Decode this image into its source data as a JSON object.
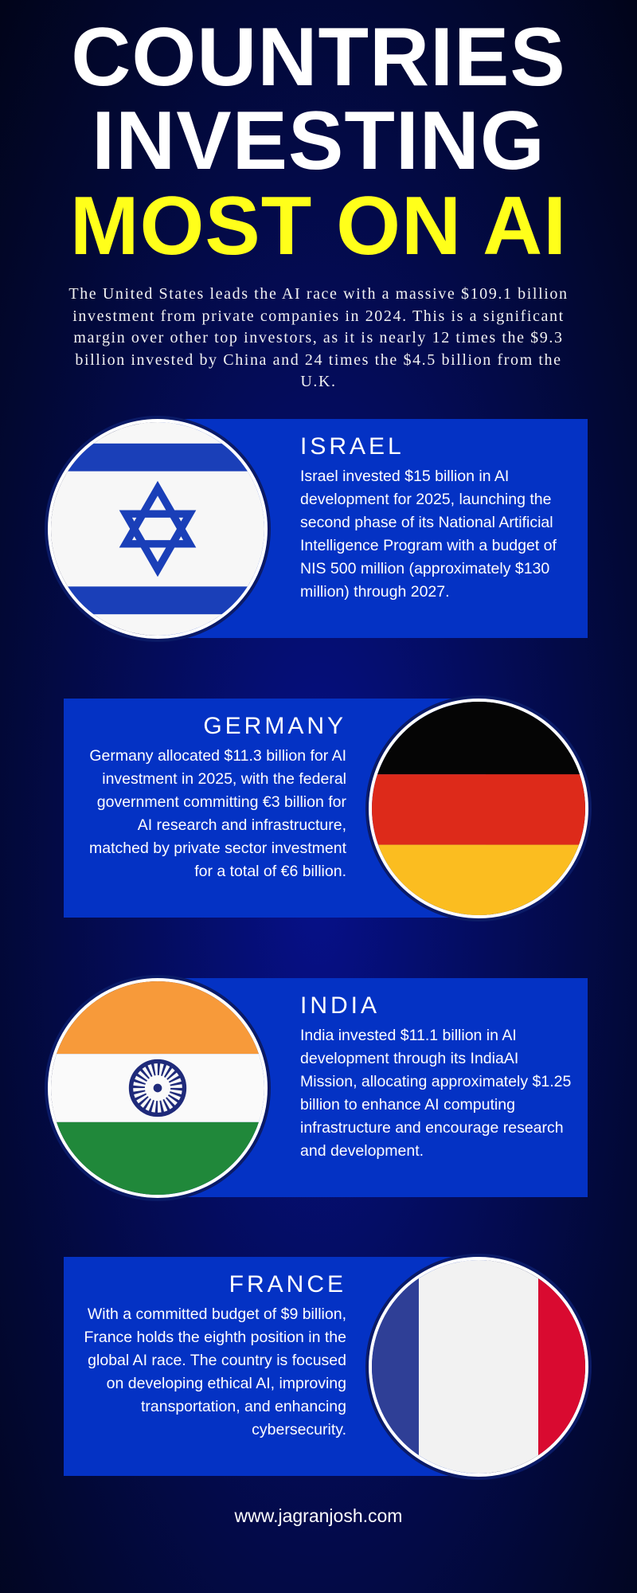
{
  "header": {
    "line1": "COUNTRIES",
    "line2": "INVESTING",
    "line3": "MOST ON AI",
    "accent_color": "#ffff1a"
  },
  "intro": "The United States leads the AI race with a massive $109.1 billion investment from private companies in 2024. This is a significant margin over other top investors, as it is nearly 12 times the $9.3 billion invested by China and 24 times the $4.5 billion from the U.K.",
  "countries": [
    {
      "name": "ISRAEL",
      "text": "Israel invested $15 billion in AI development for 2025, launching the second phase of its National Artificial Intelligence Program with a budget of NIS 500 million (approximately $130 million) through 2027.",
      "flag": "israel-flag"
    },
    {
      "name": "GERMANY",
      "text": "Germany allocated $11.3 billion for AI investment in 2025, with the federal government committing €3 billion for AI research and infrastructure, matched by private sector investment for a total of €6 billion.",
      "flag": "germany-flag"
    },
    {
      "name": "INDIA",
      "text": "India invested $11.1 billion in AI development through its IndiaAI Mission, allocating approximately $1.25 billion to enhance AI computing infrastructure and encourage research and development.",
      "flag": "india-flag"
    },
    {
      "name": "FRANCE",
      "text": "With a committed budget of $9 billion, France holds the eighth position in the global AI race. The country is focused on developing ethical AI, improving transportation, and enhancing cybersecurity.",
      "flag": "france-flag"
    }
  ],
  "footer": "www.jagranjosh.com",
  "colors": {
    "card": "#0432c4",
    "background": "#020833"
  }
}
